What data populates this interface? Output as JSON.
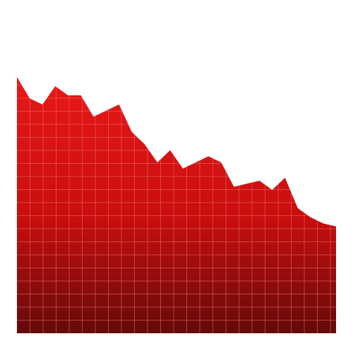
{
  "chart_data": {
    "type": "area",
    "title": "",
    "xlabel": "",
    "ylabel": "",
    "x": [
      0,
      1,
      2,
      3,
      4,
      5,
      6,
      7,
      8,
      9,
      10,
      11,
      12,
      13,
      14,
      15,
      16,
      17,
      18,
      19,
      20,
      21,
      22,
      23,
      24,
      25
    ],
    "values": [
      84,
      77,
      75,
      81,
      78,
      78,
      71,
      73,
      75,
      66,
      62,
      56,
      60,
      54,
      56,
      58,
      56,
      48,
      49,
      50,
      47,
      51,
      41,
      38,
      36,
      35
    ],
    "xlim": [
      0,
      25
    ],
    "ylim": [
      0,
      100
    ],
    "grid": true,
    "legend": "none",
    "colors": {
      "fill_top": "#ff1a1a",
      "fill_mid": "#dd0f0f",
      "fill_bottom": "#6e0b0b",
      "grid": "#ff7a7a"
    }
  }
}
